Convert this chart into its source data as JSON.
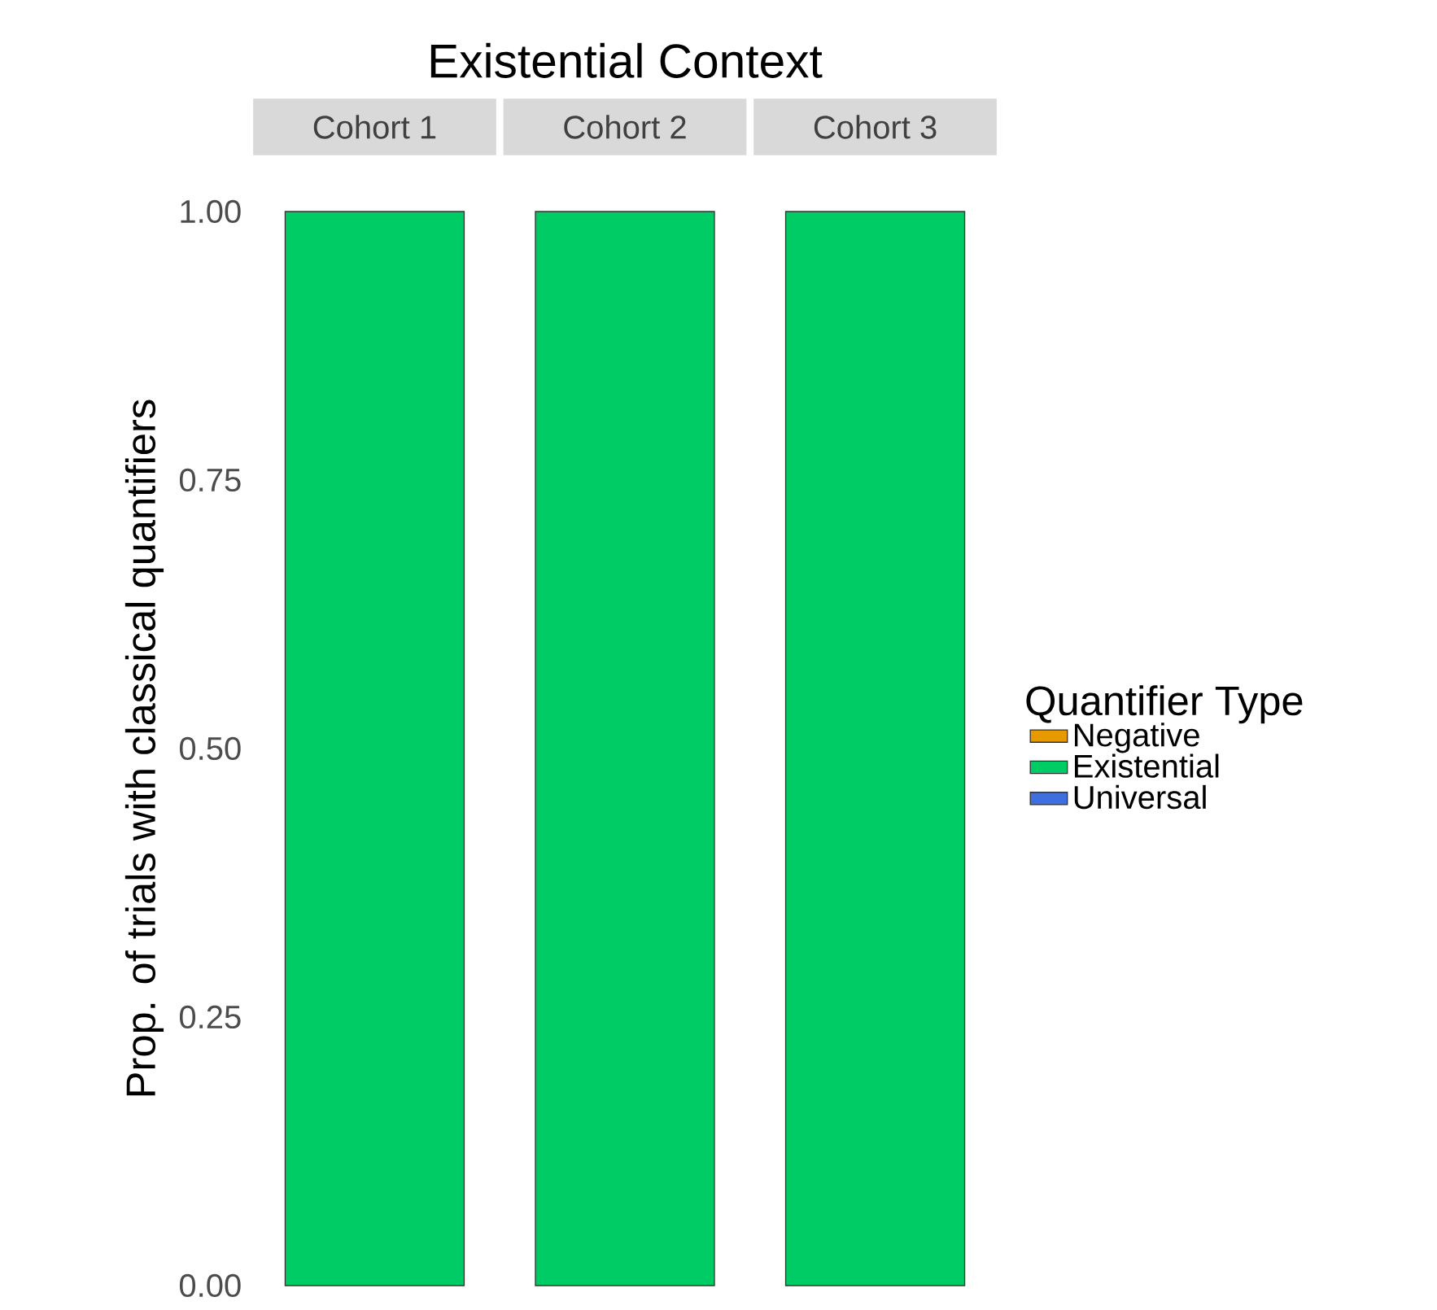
{
  "chart_data": {
    "type": "bar",
    "title": "Existential Context",
    "categories": [
      "Cohort 1",
      "Cohort 2",
      "Cohort 3"
    ],
    "stacked": true,
    "series": [
      {
        "name": "Negative",
        "color": "#e69a00",
        "values": [
          0,
          0,
          0
        ]
      },
      {
        "name": "Existential",
        "color": "#00cc66",
        "values": [
          1,
          1,
          1
        ]
      },
      {
        "name": "Universal",
        "color": "#3d6fe0",
        "values": [
          0,
          0,
          0
        ]
      }
    ],
    "ylabel": "Prop. of trials with classical quantifiers",
    "ylim": [
      0,
      1
    ],
    "yticks": [
      {
        "value": 0,
        "label": "0.00"
      },
      {
        "value": 0.25,
        "label": "0.25"
      },
      {
        "value": 0.5,
        "label": "0.50"
      },
      {
        "value": 0.75,
        "label": "0.75"
      },
      {
        "value": 1,
        "label": "1.00"
      }
    ],
    "legend": "right",
    "legend_title": "Quantifier Type",
    "grid": false
  }
}
